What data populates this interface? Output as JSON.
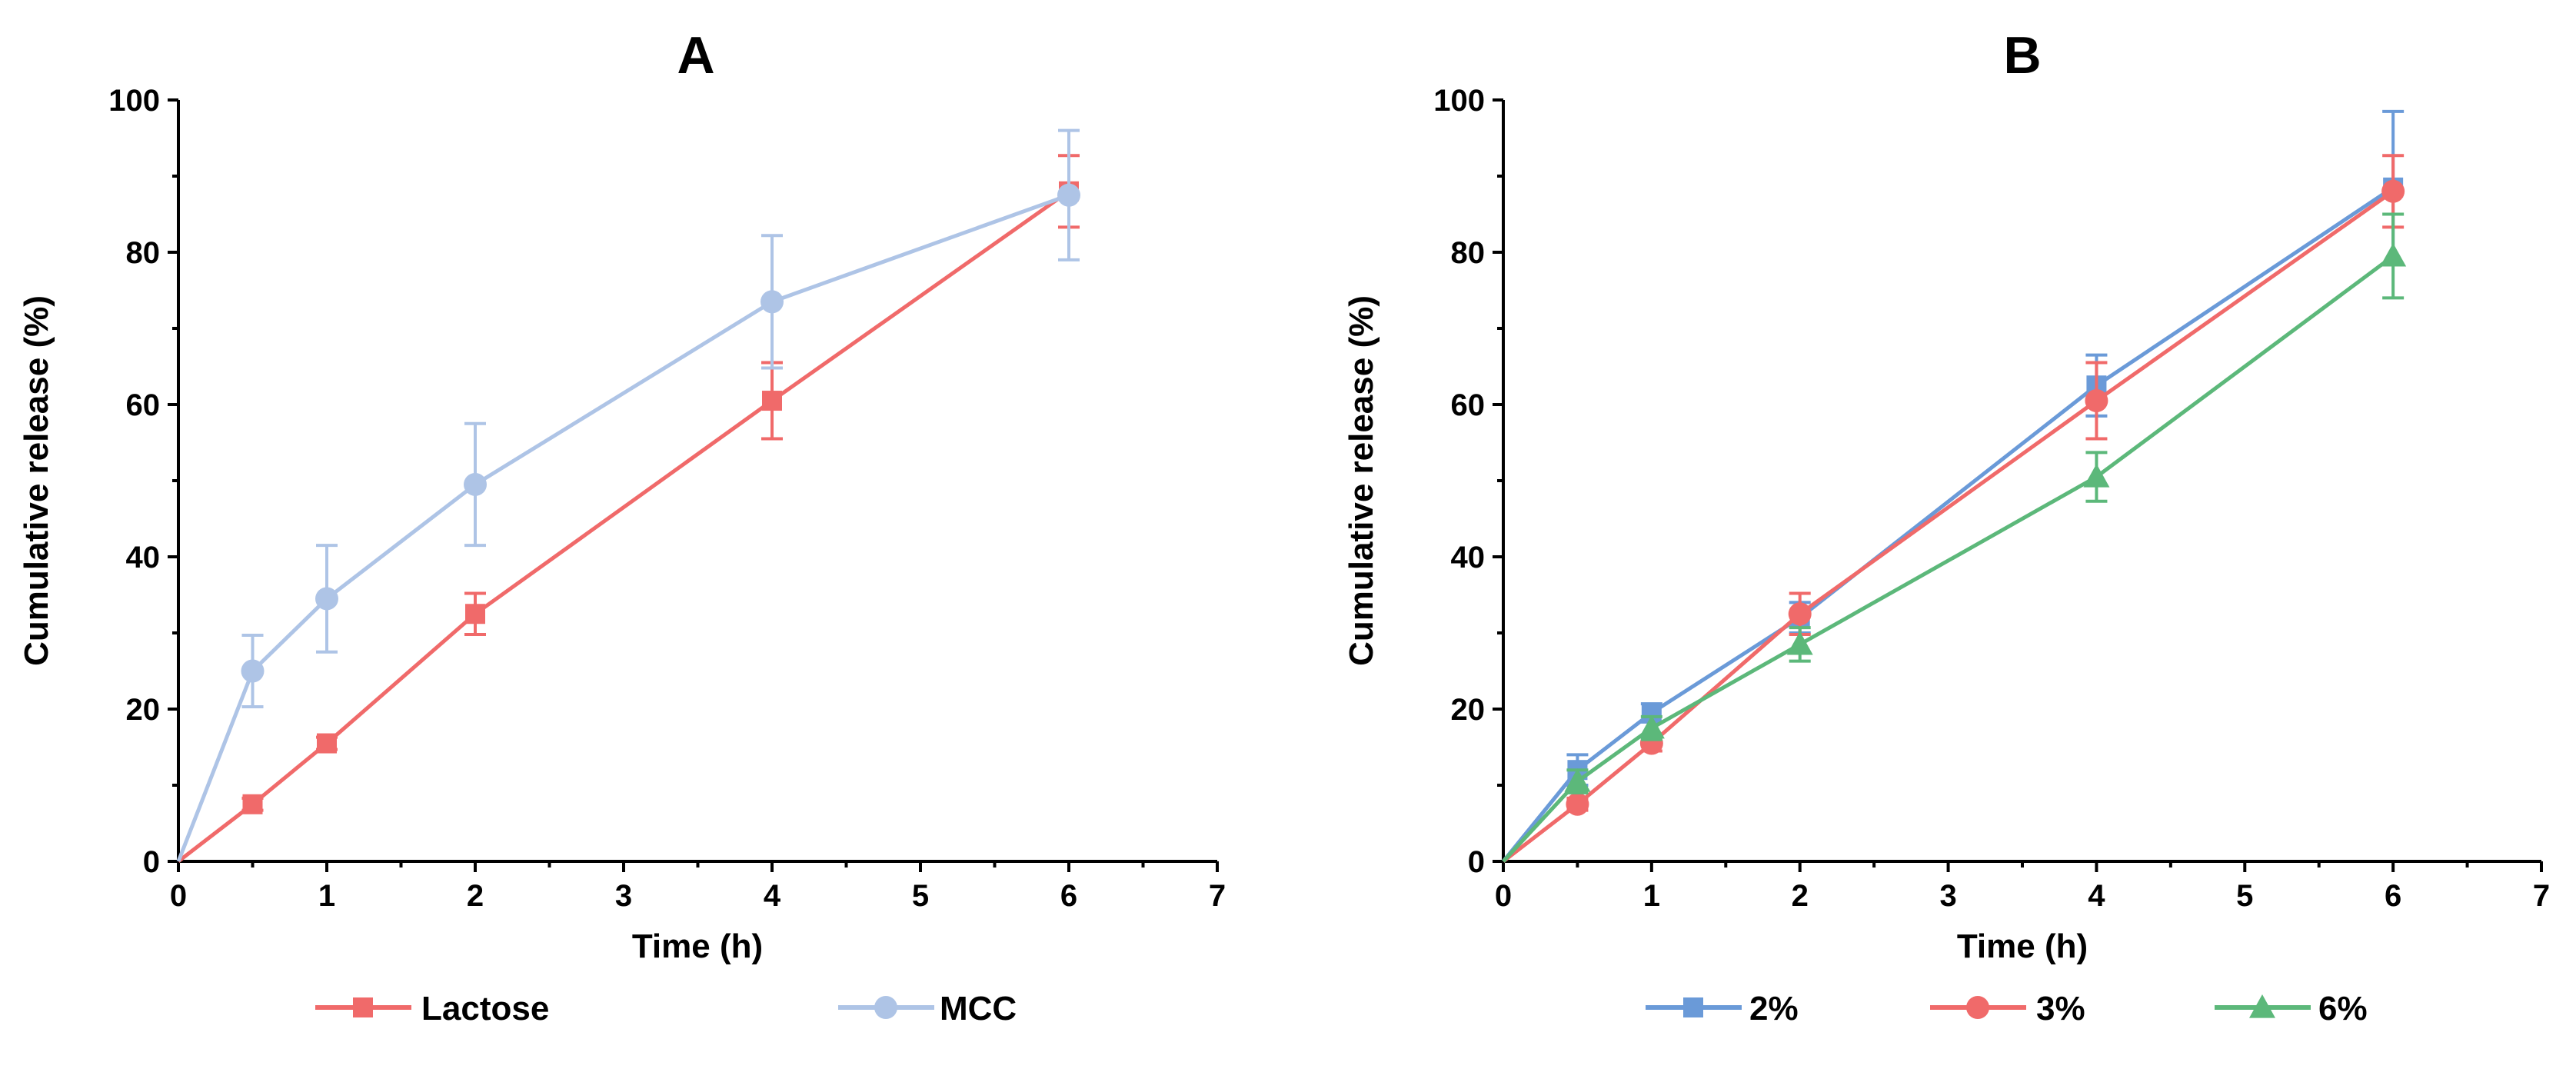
{
  "chart_data": [
    {
      "type": "line",
      "panel_label": "A",
      "xlabel": "Time (h)",
      "ylabel": "Cumulative release (%)",
      "xlim": [
        0,
        7
      ],
      "ylim": [
        0,
        100
      ],
      "xticks": [
        0,
        1,
        2,
        3,
        4,
        5,
        6,
        7
      ],
      "yticks": [
        0,
        20,
        40,
        60,
        80,
        100
      ],
      "grid": false,
      "legend_position": "bottom",
      "series": [
        {
          "name": "Lactose",
          "color": "#f06a6a",
          "marker": "square",
          "x": [
            0,
            0.5,
            1,
            2,
            4,
            6
          ],
          "y": [
            0,
            7.5,
            15.5,
            32.5,
            60.5,
            88
          ],
          "yerr": [
            0,
            0.8,
            0.8,
            2.7,
            5.0,
            4.7
          ]
        },
        {
          "name": "MCC",
          "color": "#aec4e6",
          "marker": "circle",
          "x": [
            0,
            0.5,
            1,
            2,
            4,
            6
          ],
          "y": [
            0,
            25,
            34.5,
            49.5,
            73.5,
            87.5
          ],
          "yerr": [
            0,
            4.7,
            7.0,
            8.0,
            8.7,
            8.5
          ]
        }
      ]
    },
    {
      "type": "line",
      "panel_label": "B",
      "xlabel": "Time (h)",
      "ylabel": "Cumulative release (%)",
      "xlim": [
        0,
        7
      ],
      "ylim": [
        0,
        100
      ],
      "xticks": [
        0,
        1,
        2,
        3,
        4,
        5,
        6,
        7
      ],
      "yticks": [
        0,
        20,
        40,
        60,
        80,
        100
      ],
      "grid": false,
      "legend_position": "bottom",
      "series": [
        {
          "name": "2%",
          "color": "#6a9ad8",
          "marker": "square",
          "x": [
            0,
            0.5,
            1,
            2,
            4,
            6
          ],
          "y": [
            0,
            12,
            19.5,
            32,
            62.5,
            88.5
          ],
          "yerr": [
            0,
            2.0,
            1.2,
            2.0,
            4.0,
            10.0
          ]
        },
        {
          "name": "3%",
          "color": "#f06a6a",
          "marker": "circle",
          "x": [
            0,
            0.5,
            1,
            2,
            4,
            6
          ],
          "y": [
            0,
            7.5,
            15.5,
            32.5,
            60.5,
            88
          ],
          "yerr": [
            0,
            0.8,
            1.0,
            2.7,
            5.0,
            4.7
          ]
        },
        {
          "name": "6%",
          "color": "#5cb87a",
          "marker": "triangle",
          "x": [
            0,
            0.5,
            1,
            2,
            4,
            6
          ],
          "y": [
            0,
            10.5,
            17.5,
            28.5,
            50.5,
            79.5
          ],
          "yerr": [
            0,
            1.5,
            1.5,
            2.2,
            3.2,
            5.5
          ]
        }
      ]
    }
  ]
}
